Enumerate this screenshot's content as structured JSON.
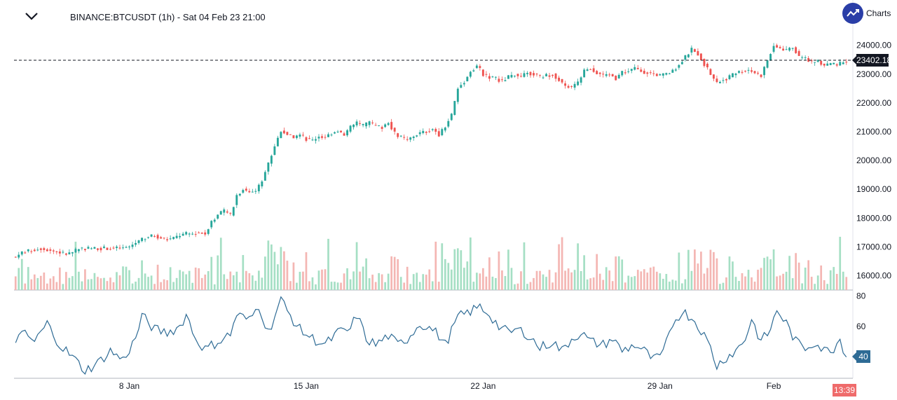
{
  "header": {
    "symbol_title": "BINANCE:BTCUSDT (1h) - Sat 04 Feb 23 21:00",
    "brand_label": "Charts"
  },
  "colors": {
    "up": "#26a69a",
    "down": "#ef5350",
    "volume_up": "#a5dfc4",
    "volume_down": "#f4b6b3",
    "oscillator": "#2e6b95",
    "axis_text": "#131722",
    "brand": "#2a3ea7"
  },
  "icons": {
    "collapse": "chevron-down-icon",
    "brand": "trend-logo-icon"
  },
  "price_marker": {
    "value": "23402.18"
  },
  "oscillator_marker": {
    "value": "40"
  },
  "time_marker": {
    "value": "13:39"
  },
  "chart_data": {
    "type": "candlestick",
    "title": "BINANCE:BTCUSDT (1h) - Sat 04 Feb 23 21:00",
    "x_tick_labels": [
      "8 Jan",
      "15 Jan",
      "22 Jan",
      "29 Jan",
      "Feb"
    ],
    "price_axis": {
      "tick_labels": [
        "16000.00",
        "17000.00",
        "18000.00",
        "19000.00",
        "20000.00",
        "21000.00",
        "22000.00",
        "23000.00",
        "24000.00"
      ],
      "ylim": [
        15500,
        24600
      ]
    },
    "oscillator_axis": {
      "tick_labels": [
        "60",
        "80"
      ],
      "ylim": [
        26,
        84
      ]
    },
    "last_price": 23402.18,
    "price_path": [
      {
        "x": 0,
        "y": 16650
      },
      {
        "x": 2,
        "y": 16800
      },
      {
        "x": 4,
        "y": 16850
      },
      {
        "x": 6,
        "y": 16900
      },
      {
        "x": 8,
        "y": 16950
      },
      {
        "x": 10,
        "y": 16900
      },
      {
        "x": 12,
        "y": 16850
      },
      {
        "x": 14,
        "y": 16800
      },
      {
        "x": 16,
        "y": 16750
      },
      {
        "x": 18,
        "y": 16800
      },
      {
        "x": 20,
        "y": 16950
      },
      {
        "x": 22,
        "y": 16950
      },
      {
        "x": 26,
        "y": 16950
      },
      {
        "x": 30,
        "y": 16950
      },
      {
        "x": 34,
        "y": 16950
      },
      {
        "x": 36,
        "y": 17000
      },
      {
        "x": 38,
        "y": 17150
      },
      {
        "x": 40,
        "y": 17250
      },
      {
        "x": 42,
        "y": 17350
      },
      {
        "x": 44,
        "y": 17400
      },
      {
        "x": 46,
        "y": 17300
      },
      {
        "x": 48,
        "y": 17250
      },
      {
        "x": 50,
        "y": 17300
      },
      {
        "x": 52,
        "y": 17400
      },
      {
        "x": 54,
        "y": 17450
      },
      {
        "x": 56,
        "y": 17450
      },
      {
        "x": 58,
        "y": 17500
      },
      {
        "x": 60,
        "y": 17450
      },
      {
        "x": 62,
        "y": 17900
      },
      {
        "x": 64,
        "y": 18100
      },
      {
        "x": 66,
        "y": 18250
      },
      {
        "x": 68,
        "y": 18100
      },
      {
        "x": 70,
        "y": 18800
      },
      {
        "x": 72,
        "y": 19000
      },
      {
        "x": 74,
        "y": 18900
      },
      {
        "x": 76,
        "y": 18950
      },
      {
        "x": 78,
        "y": 19300
      },
      {
        "x": 80,
        "y": 19900
      },
      {
        "x": 82,
        "y": 20500
      },
      {
        "x": 84,
        "y": 21050
      },
      {
        "x": 86,
        "y": 20900
      },
      {
        "x": 88,
        "y": 20800
      },
      {
        "x": 90,
        "y": 20900
      },
      {
        "x": 92,
        "y": 20750
      },
      {
        "x": 94,
        "y": 20700
      },
      {
        "x": 96,
        "y": 20850
      },
      {
        "x": 98,
        "y": 20800
      },
      {
        "x": 100,
        "y": 20950
      },
      {
        "x": 102,
        "y": 21050
      },
      {
        "x": 104,
        "y": 20850
      },
      {
        "x": 106,
        "y": 21150
      },
      {
        "x": 108,
        "y": 21300
      },
      {
        "x": 110,
        "y": 21200
      },
      {
        "x": 112,
        "y": 21300
      },
      {
        "x": 114,
        "y": 21200
      },
      {
        "x": 116,
        "y": 21150
      },
      {
        "x": 118,
        "y": 21350
      },
      {
        "x": 120,
        "y": 20950
      },
      {
        "x": 122,
        "y": 20800
      },
      {
        "x": 124,
        "y": 20700
      },
      {
        "x": 126,
        "y": 20850
      },
      {
        "x": 128,
        "y": 20950
      },
      {
        "x": 130,
        "y": 21000
      },
      {
        "x": 132,
        "y": 21100
      },
      {
        "x": 134,
        "y": 20900
      },
      {
        "x": 136,
        "y": 21200
      },
      {
        "x": 138,
        "y": 21600
      },
      {
        "x": 140,
        "y": 22500
      },
      {
        "x": 142,
        "y": 22750
      },
      {
        "x": 144,
        "y": 23100
      },
      {
        "x": 146,
        "y": 23300
      },
      {
        "x": 148,
        "y": 23000
      },
      {
        "x": 150,
        "y": 22900
      },
      {
        "x": 152,
        "y": 22850
      },
      {
        "x": 154,
        "y": 22750
      },
      {
        "x": 156,
        "y": 22900
      },
      {
        "x": 158,
        "y": 23000
      },
      {
        "x": 160,
        "y": 22900
      },
      {
        "x": 162,
        "y": 23050
      },
      {
        "x": 164,
        "y": 23000
      },
      {
        "x": 166,
        "y": 22900
      },
      {
        "x": 168,
        "y": 22950
      },
      {
        "x": 170,
        "y": 23000
      },
      {
        "x": 172,
        "y": 22800
      },
      {
        "x": 174,
        "y": 22600
      },
      {
        "x": 176,
        "y": 22550
      },
      {
        "x": 178,
        "y": 22700
      },
      {
        "x": 180,
        "y": 23100
      },
      {
        "x": 182,
        "y": 23200
      },
      {
        "x": 184,
        "y": 23050
      },
      {
        "x": 186,
        "y": 22950
      },
      {
        "x": 188,
        "y": 23000
      },
      {
        "x": 190,
        "y": 22850
      },
      {
        "x": 192,
        "y": 23050
      },
      {
        "x": 194,
        "y": 23100
      },
      {
        "x": 196,
        "y": 23200
      },
      {
        "x": 198,
        "y": 23100
      },
      {
        "x": 200,
        "y": 23050
      },
      {
        "x": 202,
        "y": 23000
      },
      {
        "x": 204,
        "y": 22950
      },
      {
        "x": 206,
        "y": 23000
      },
      {
        "x": 208,
        "y": 23100
      },
      {
        "x": 210,
        "y": 23350
      },
      {
        "x": 212,
        "y": 23600
      },
      {
        "x": 214,
        "y": 23850
      },
      {
        "x": 216,
        "y": 23700
      },
      {
        "x": 218,
        "y": 23350
      },
      {
        "x": 220,
        "y": 23000
      },
      {
        "x": 222,
        "y": 22700
      },
      {
        "x": 224,
        "y": 22800
      },
      {
        "x": 226,
        "y": 22900
      },
      {
        "x": 228,
        "y": 23050
      },
      {
        "x": 230,
        "y": 23100
      },
      {
        "x": 232,
        "y": 23150
      },
      {
        "x": 234,
        "y": 23050
      },
      {
        "x": 236,
        "y": 22950
      },
      {
        "x": 238,
        "y": 23500
      },
      {
        "x": 240,
        "y": 24000
      },
      {
        "x": 242,
        "y": 23900
      },
      {
        "x": 244,
        "y": 23800
      },
      {
        "x": 246,
        "y": 23950
      },
      {
        "x": 248,
        "y": 23600
      },
      {
        "x": 250,
        "y": 23550
      },
      {
        "x": 252,
        "y": 23400
      },
      {
        "x": 254,
        "y": 23450
      },
      {
        "x": 256,
        "y": 23300
      },
      {
        "x": 258,
        "y": 23350
      },
      {
        "x": 260,
        "y": 23300
      },
      {
        "x": 262,
        "y": 23420
      },
      {
        "x": 263,
        "y": 23402
      }
    ],
    "oscillator_path": [
      {
        "x": 0,
        "y": 52
      },
      {
        "x": 3,
        "y": 55
      },
      {
        "x": 6,
        "y": 50
      },
      {
        "x": 10,
        "y": 62
      },
      {
        "x": 14,
        "y": 48
      },
      {
        "x": 18,
        "y": 40
      },
      {
        "x": 22,
        "y": 31
      },
      {
        "x": 26,
        "y": 36
      },
      {
        "x": 30,
        "y": 44
      },
      {
        "x": 34,
        "y": 38
      },
      {
        "x": 38,
        "y": 52
      },
      {
        "x": 40,
        "y": 67
      },
      {
        "x": 44,
        "y": 58
      },
      {
        "x": 48,
        "y": 56
      },
      {
        "x": 52,
        "y": 60
      },
      {
        "x": 54,
        "y": 68
      },
      {
        "x": 57,
        "y": 52
      },
      {
        "x": 60,
        "y": 45
      },
      {
        "x": 64,
        "y": 50
      },
      {
        "x": 68,
        "y": 55
      },
      {
        "x": 70,
        "y": 68
      },
      {
        "x": 74,
        "y": 64
      },
      {
        "x": 77,
        "y": 74
      },
      {
        "x": 80,
        "y": 56
      },
      {
        "x": 84,
        "y": 78
      },
      {
        "x": 86,
        "y": 70
      },
      {
        "x": 90,
        "y": 58
      },
      {
        "x": 94,
        "y": 52
      },
      {
        "x": 98,
        "y": 48
      },
      {
        "x": 102,
        "y": 56
      },
      {
        "x": 106,
        "y": 58
      },
      {
        "x": 108,
        "y": 68
      },
      {
        "x": 111,
        "y": 52
      },
      {
        "x": 114,
        "y": 48
      },
      {
        "x": 118,
        "y": 54
      },
      {
        "x": 121,
        "y": 48
      },
      {
        "x": 124,
        "y": 52
      },
      {
        "x": 128,
        "y": 62
      },
      {
        "x": 132,
        "y": 58
      },
      {
        "x": 134,
        "y": 54
      },
      {
        "x": 136,
        "y": 48
      },
      {
        "x": 140,
        "y": 66
      },
      {
        "x": 144,
        "y": 70
      },
      {
        "x": 147,
        "y": 73
      },
      {
        "x": 150,
        "y": 68
      },
      {
        "x": 153,
        "y": 60
      },
      {
        "x": 156,
        "y": 56
      },
      {
        "x": 159,
        "y": 58
      },
      {
        "x": 162,
        "y": 55
      },
      {
        "x": 166,
        "y": 46
      },
      {
        "x": 170,
        "y": 50
      },
      {
        "x": 173,
        "y": 44
      },
      {
        "x": 176,
        "y": 52
      },
      {
        "x": 179,
        "y": 56
      },
      {
        "x": 182,
        "y": 50
      },
      {
        "x": 186,
        "y": 48
      },
      {
        "x": 189,
        "y": 52
      },
      {
        "x": 192,
        "y": 44
      },
      {
        "x": 196,
        "y": 48
      },
      {
        "x": 199,
        "y": 44
      },
      {
        "x": 202,
        "y": 38
      },
      {
        "x": 205,
        "y": 42
      },
      {
        "x": 208,
        "y": 62
      },
      {
        "x": 211,
        "y": 70
      },
      {
        "x": 214,
        "y": 66
      },
      {
        "x": 217,
        "y": 58
      },
      {
        "x": 220,
        "y": 46
      },
      {
        "x": 222,
        "y": 34
      },
      {
        "x": 225,
        "y": 40
      },
      {
        "x": 228,
        "y": 44
      },
      {
        "x": 231,
        "y": 52
      },
      {
        "x": 233,
        "y": 65
      },
      {
        "x": 236,
        "y": 50
      },
      {
        "x": 239,
        "y": 58
      },
      {
        "x": 241,
        "y": 71
      },
      {
        "x": 244,
        "y": 62
      },
      {
        "x": 247,
        "y": 50
      },
      {
        "x": 250,
        "y": 46
      },
      {
        "x": 253,
        "y": 50
      },
      {
        "x": 256,
        "y": 44
      },
      {
        "x": 259,
        "y": 46
      },
      {
        "x": 261,
        "y": 52
      },
      {
        "x": 263,
        "y": 40
      }
    ]
  }
}
